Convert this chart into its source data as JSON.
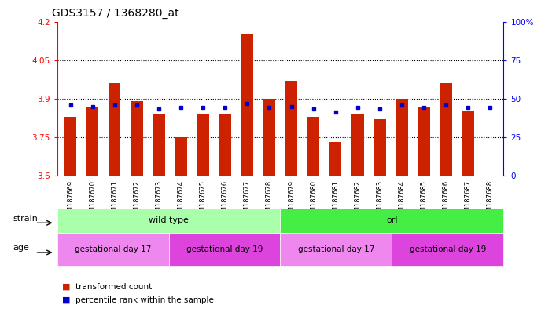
{
  "title": "GDS3157 / 1368280_at",
  "samples": [
    "GSM187669",
    "GSM187670",
    "GSM187671",
    "GSM187672",
    "GSM187673",
    "GSM187674",
    "GSM187675",
    "GSM187676",
    "GSM187677",
    "GSM187678",
    "GSM187679",
    "GSM187680",
    "GSM187681",
    "GSM187682",
    "GSM187683",
    "GSM187684",
    "GSM187685",
    "GSM187686",
    "GSM187687",
    "GSM187688"
  ],
  "transformed_count": [
    3.83,
    3.87,
    3.96,
    3.89,
    3.84,
    3.75,
    3.84,
    3.84,
    4.15,
    3.9,
    3.97,
    3.83,
    3.73,
    3.84,
    3.82,
    3.9,
    3.87,
    3.96,
    3.85,
    3.6
  ],
  "percentile_rank": [
    46,
    45,
    46,
    46,
    43,
    44,
    44,
    44,
    47,
    44,
    45,
    43,
    41,
    44,
    43,
    46,
    44,
    46,
    44,
    44
  ],
  "ylim": [
    3.6,
    4.2
  ],
  "yticks": [
    3.6,
    3.75,
    3.9,
    4.05,
    4.2
  ],
  "ytick_labels": [
    "3.6",
    "3.75",
    "3.9",
    "4.05",
    "4.2"
  ],
  "right_yticks": [
    0,
    25,
    50,
    75,
    100
  ],
  "right_ytick_labels": [
    "0",
    "25",
    "50",
    "75",
    "100%"
  ],
  "bar_color": "#cc2200",
  "dot_color": "#0000cc",
  "grid_color": "#000000",
  "strain_groups": [
    {
      "label": "wild type",
      "start": 0,
      "end": 9,
      "color": "#aaffaa"
    },
    {
      "label": "orl",
      "start": 10,
      "end": 19,
      "color": "#44ee44"
    }
  ],
  "age_groups": [
    {
      "label": "gestational day 17",
      "start": 0,
      "end": 4,
      "color": "#ee88ee"
    },
    {
      "label": "gestational day 19",
      "start": 5,
      "end": 9,
      "color": "#dd44dd"
    },
    {
      "label": "gestational day 17",
      "start": 10,
      "end": 14,
      "color": "#ee88ee"
    },
    {
      "label": "gestational day 19",
      "start": 15,
      "end": 19,
      "color": "#dd44dd"
    }
  ],
  "legend_items": [
    {
      "label": "transformed count",
      "color": "#cc2200"
    },
    {
      "label": "percentile rank within the sample",
      "color": "#0000cc"
    }
  ],
  "title_fontsize": 10,
  "tick_fontsize": 7.5,
  "label_fontsize": 8
}
